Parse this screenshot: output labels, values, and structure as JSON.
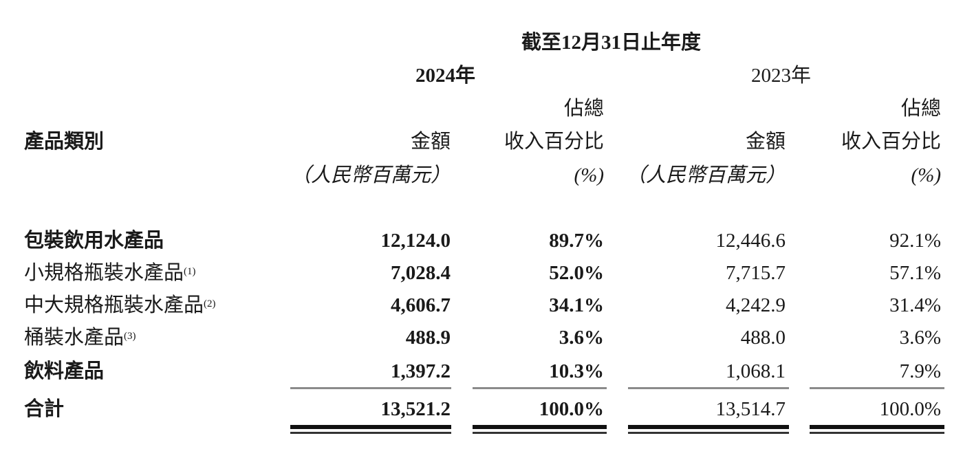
{
  "header": {
    "period": "截至12月31日止年度",
    "years": [
      "2024年",
      "2023年"
    ],
    "category_label": "產品類別",
    "amount_label": "金額",
    "amount_unit": "（人民幣百萬元）",
    "pct_label_1": "佔總",
    "pct_label_2": "收入百分比",
    "pct_unit": "(%)"
  },
  "rows": [
    {
      "label": "包裝飲用水產品",
      "note": "",
      "bold": true,
      "v2024": "12,124.0",
      "p2024": "89.7%",
      "v2023": "12,446.6",
      "p2023": "92.1%"
    },
    {
      "label": "小規格瓶裝水產品",
      "note": "(1)",
      "bold": false,
      "v2024": "7,028.4",
      "p2024": "52.0%",
      "v2023": "7,715.7",
      "p2023": "57.1%"
    },
    {
      "label": "中大規格瓶裝水產品",
      "note": "(2)",
      "bold": false,
      "v2024": "4,606.7",
      "p2024": "34.1%",
      "v2023": "4,242.9",
      "p2023": "31.4%"
    },
    {
      "label": "桶裝水產品",
      "note": "(3)",
      "bold": false,
      "v2024": "488.9",
      "p2024": "3.6%",
      "v2023": "488.0",
      "p2023": "3.6%"
    },
    {
      "label": "飲料產品",
      "note": "",
      "bold": true,
      "v2024": "1,397.2",
      "p2024": "10.3%",
      "v2023": "1,068.1",
      "p2023": "7.9%"
    }
  ],
  "total": {
    "label": "合計",
    "v2024": "13,521.2",
    "p2024": "100.0%",
    "v2023": "13,514.7",
    "p2023": "100.0%"
  }
}
